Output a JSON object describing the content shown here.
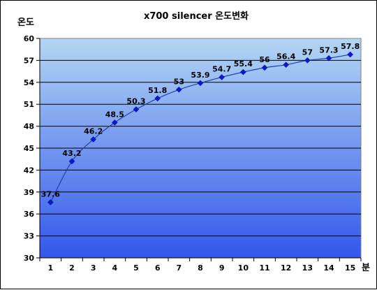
{
  "chart_data": {
    "type": "line",
    "title": "x700 silencer 온도변화",
    "ylabel": "온도",
    "xlabel": "분",
    "x": [
      1,
      2,
      3,
      4,
      5,
      6,
      7,
      8,
      9,
      10,
      11,
      12,
      13,
      14,
      15
    ],
    "values": [
      37.6,
      43.2,
      46.2,
      48.5,
      50.3,
      51.8,
      53,
      53.9,
      54.7,
      55.4,
      56,
      56.4,
      57,
      57.3,
      57.8
    ],
    "data_labels": [
      "37.6",
      "43.2",
      "46.2",
      "48.5",
      "50.3",
      "51.8",
      "53",
      "53.9",
      "54.7",
      "55.4",
      "56",
      "56.4",
      "57",
      "57.3",
      "57.8"
    ],
    "ylim": [
      30,
      60
    ],
    "yticks": [
      "30",
      "33",
      "36",
      "39",
      "42",
      "45",
      "48",
      "51",
      "54",
      "57",
      "60"
    ],
    "grid": true,
    "legend": "none",
    "colors": {
      "line": "#1f3fae",
      "marker": "#0a18d6",
      "plot_top": "#b3d6f3",
      "plot_bottom": "#3257ec",
      "gridline": "#000000"
    }
  }
}
